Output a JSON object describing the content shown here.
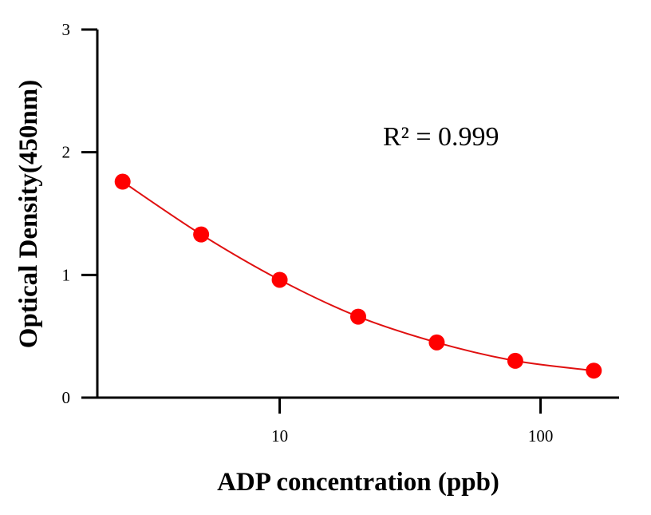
{
  "chart_data": {
    "type": "scatter",
    "title": "",
    "xlabel": "ADP concentration (ppb)",
    "ylabel": "Optical Density(450nm)",
    "x_scale": "log",
    "xlim": [
      2,
      200
    ],
    "ylim": [
      0,
      3
    ],
    "x_ticks": [
      10,
      100
    ],
    "x_tick_labels": [
      "10",
      "100"
    ],
    "y_ticks": [
      0,
      1,
      2,
      3
    ],
    "y_tick_labels": [
      "0",
      "1",
      "2",
      "3"
    ],
    "grid": false,
    "legend": "none",
    "annotation": "R² = 0.999",
    "series": [
      {
        "color": "#ff0000",
        "line_color": "#e01010",
        "points": [
          {
            "x": 2.5,
            "y": 1.76
          },
          {
            "x": 5,
            "y": 1.33
          },
          {
            "x": 10,
            "y": 0.96
          },
          {
            "x": 20,
            "y": 0.66
          },
          {
            "x": 40,
            "y": 0.45
          },
          {
            "x": 80,
            "y": 0.3
          },
          {
            "x": 160,
            "y": 0.22
          }
        ]
      }
    ]
  }
}
